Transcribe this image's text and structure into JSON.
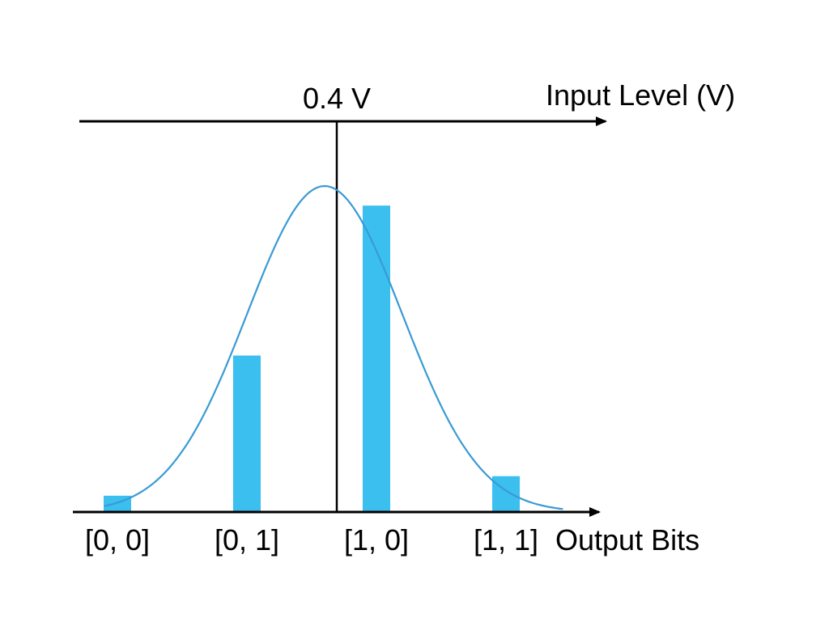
{
  "chart_data": {
    "type": "bar",
    "categories": [
      "[0, 0]",
      "[0, 1]",
      "[1, 0]",
      "[1, 1]"
    ],
    "values": [
      0.05,
      0.48,
      0.94,
      0.11
    ],
    "ylim": [
      0,
      1
    ],
    "xlabel": "Output Bits",
    "top_axis_label": "Input Level (V)",
    "threshold_label": "0.4 V",
    "curve": {
      "type": "gaussian",
      "peak": 1.0,
      "center_category_position": 1.6,
      "sigma_category_units": 0.6
    },
    "colors": {
      "bar": "#3bbfef",
      "curve": "#3a9ad4",
      "axes": "#000000"
    }
  }
}
